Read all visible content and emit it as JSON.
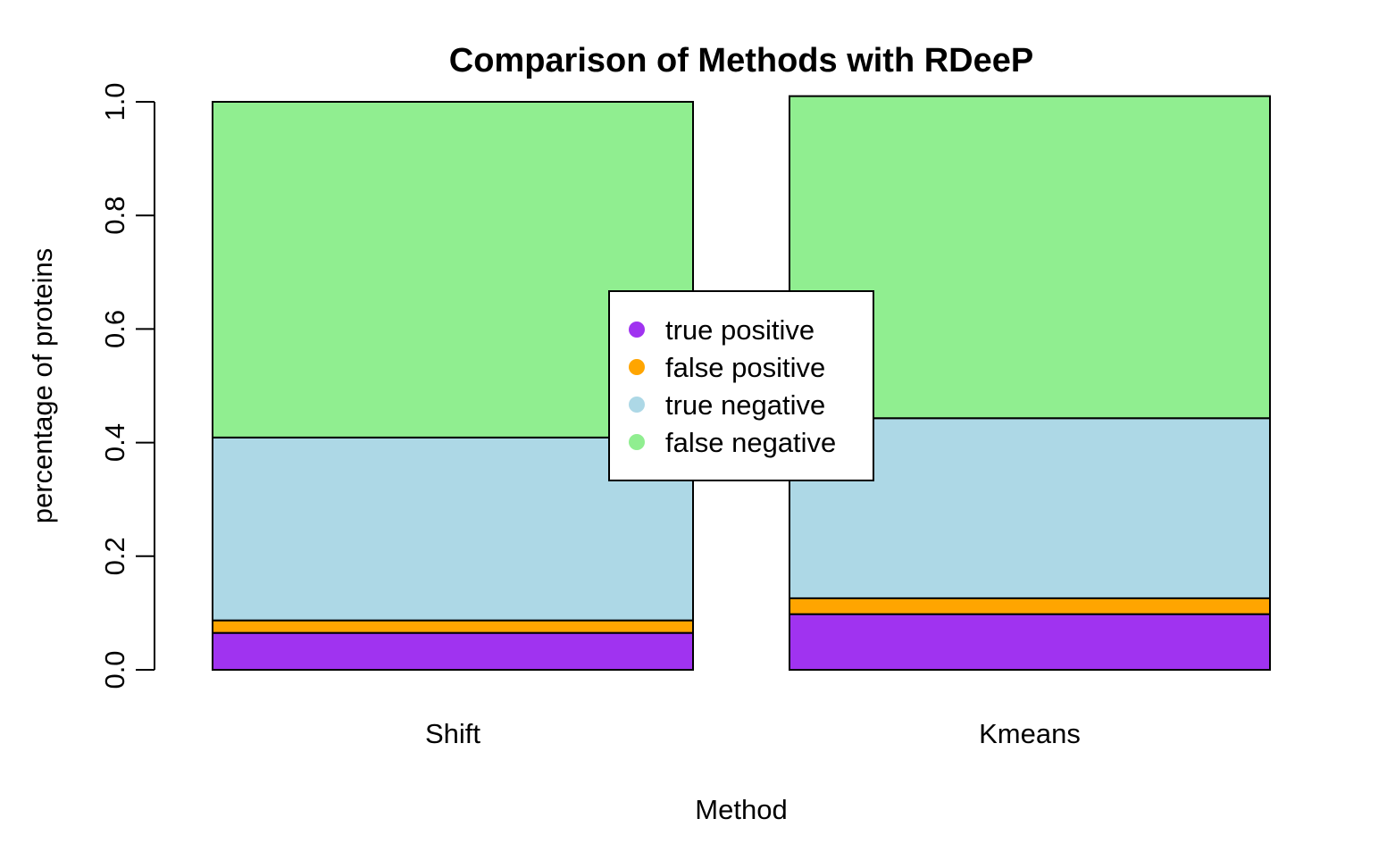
{
  "chart_data": {
    "type": "bar",
    "stacked": true,
    "title": "Comparison of Methods with RDeeP",
    "xlabel": "Method",
    "ylabel": "percentage of proteins",
    "ylim": [
      0,
      1
    ],
    "yticks": [
      "0.0",
      "0.2",
      "0.4",
      "0.6",
      "0.8",
      "1.0"
    ],
    "categories": [
      "Shift",
      "Kmeans"
    ],
    "series": [
      {
        "name": "true positive",
        "color": "#a033f0",
        "values": [
          0.065,
          0.098
        ]
      },
      {
        "name": "false positive",
        "color": "#ffa500",
        "values": [
          0.022,
          0.028
        ]
      },
      {
        "name": "true negative",
        "color": "#add8e6",
        "values": [
          0.322,
          0.317
        ]
      },
      {
        "name": "false negative",
        "color": "#90ee90",
        "values": [
          0.591,
          0.567
        ]
      }
    ],
    "legend_position": "center",
    "grid": false
  }
}
